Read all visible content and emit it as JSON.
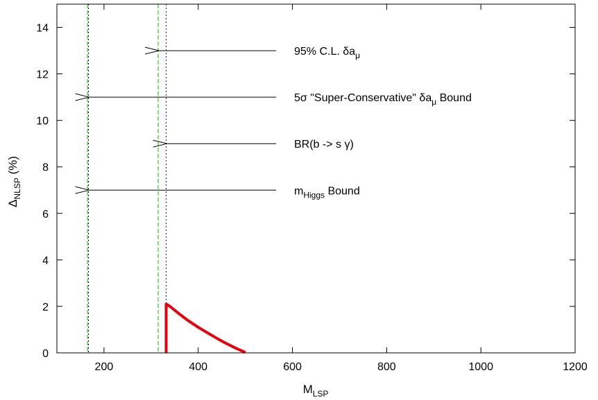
{
  "chart_data": {
    "type": "line",
    "xlabel": {
      "main": "M",
      "sub": "LSP"
    },
    "ylabel": {
      "main": "Δ",
      "sub": "NLSP",
      "suffix": " (%)"
    },
    "xlim": [
      100,
      1200
    ],
    "ylim": [
      0,
      15
    ],
    "xticks": [
      200,
      400,
      600,
      800,
      1000,
      1200
    ],
    "yticks": [
      0,
      2,
      4,
      6,
      8,
      10,
      12,
      14
    ],
    "grid": false,
    "colors": {
      "curve": "#e8000b",
      "green": "#00c000",
      "blue": "#0000d0",
      "black": "#000000"
    },
    "bounds": [
      {
        "x": 165,
        "style": "dashed",
        "color": "green"
      },
      {
        "x": 167,
        "style": "dotted",
        "color": "black"
      },
      {
        "x": 315,
        "style": "dashed",
        "color": "green"
      },
      {
        "x": 332,
        "style": "dotted",
        "color": "blue"
      }
    ],
    "annotations": [
      {
        "parts": [
          "95% C.L. δa",
          "μ",
          ""
        ],
        "arrow_y": 13,
        "arrow_to_x": 315
      },
      {
        "parts": [
          "5σ \"Super-Conservative\" δa",
          "μ",
          " Bound"
        ],
        "arrow_y": 11,
        "arrow_to_x": 167
      },
      {
        "parts": [
          "BR(b -> s γ)",
          "",
          ""
        ],
        "arrow_y": 9,
        "arrow_to_x": 332
      },
      {
        "parts": [
          "m",
          "Higgs",
          " Bound"
        ],
        "arrow_y": 7,
        "arrow_to_x": 167
      }
    ],
    "series": [
      {
        "x": [
          332,
          332,
          340,
          360,
          380,
          400,
          420,
          440,
          460,
          480,
          500
        ],
        "y": [
          0,
          2.1,
          2.0,
          1.67,
          1.37,
          1.1,
          0.86,
          0.62,
          0.4,
          0.2,
          0.02
        ]
      }
    ]
  }
}
